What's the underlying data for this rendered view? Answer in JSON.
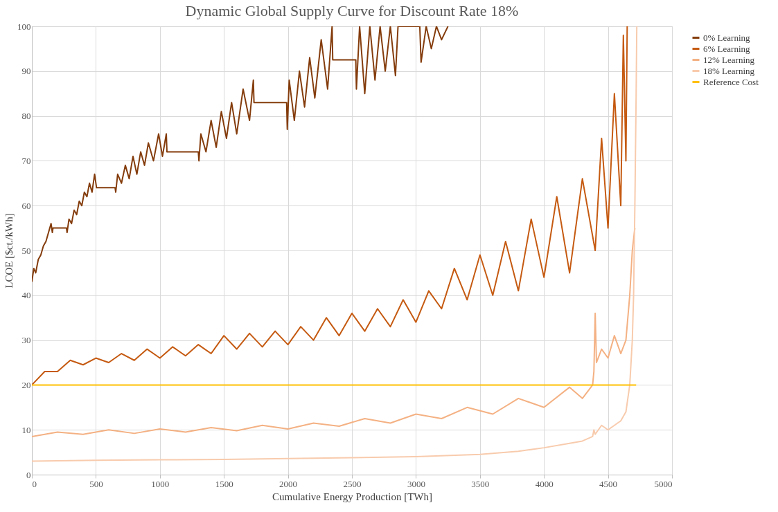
{
  "chart_data": {
    "type": "line",
    "title": "Dynamic Global Supply Curve for Discount Rate 18%",
    "xlabel": "Cumulative Energy Production [TWh]",
    "ylabel": "LCOE [$ct./kWh]",
    "xlim": [
      0,
      5000
    ],
    "xticks": [
      0,
      500,
      1000,
      1500,
      2000,
      2500,
      3000,
      3500,
      4000,
      4500,
      5000
    ],
    "ylim": [
      0,
      100
    ],
    "yticks": [
      0,
      10,
      20,
      30,
      40,
      50,
      60,
      70,
      80,
      90,
      100
    ],
    "grid": true,
    "legend": "right",
    "series": [
      {
        "name": "0% Learning",
        "color": "#843c0c",
        "x": [
          0,
          15,
          30,
          50,
          70,
          90,
          110,
          130,
          150,
          160,
          165,
          270,
          275,
          290,
          310,
          330,
          350,
          370,
          390,
          410,
          430,
          450,
          470,
          490,
          505,
          650,
          655,
          670,
          700,
          730,
          760,
          790,
          820,
          850,
          880,
          910,
          950,
          990,
          1020,
          1050,
          1055,
          1300,
          1305,
          1320,
          1360,
          1400,
          1440,
          1480,
          1520,
          1560,
          1600,
          1650,
          1700,
          1730,
          1735,
          1990,
          1995,
          2010,
          2050,
          2090,
          2130,
          2170,
          2210,
          2260,
          2310,
          2345,
          2350,
          2530,
          2535,
          2560,
          2600,
          2640,
          2680,
          2720,
          2760,
          2800,
          2840,
          2860,
          3030,
          3040,
          3080,
          3120,
          3160,
          3200,
          3250
        ],
        "values": [
          43,
          46,
          45,
          48,
          49,
          51,
          52,
          54,
          56,
          54,
          55,
          55,
          54,
          57,
          56,
          59,
          58,
          61,
          60,
          63,
          62,
          65,
          63,
          67,
          64,
          64,
          63,
          67,
          65,
          69,
          66,
          71,
          67,
          72,
          69,
          74,
          70,
          76,
          71,
          76,
          72,
          72,
          70,
          76,
          72,
          79,
          73,
          81,
          75,
          83,
          76,
          86,
          79,
          88,
          83,
          83,
          77,
          88,
          79,
          90,
          82,
          93,
          84,
          97,
          86,
          100,
          92.5,
          92.5,
          86,
          100,
          85,
          100,
          88,
          100,
          90,
          100,
          89,
          100,
          100,
          92,
          100,
          95,
          100,
          97,
          100
        ]
      },
      {
        "name": "6% Learning",
        "color": "#c55a11",
        "x": [
          0,
          100,
          200,
          300,
          400,
          500,
          600,
          700,
          800,
          900,
          1000,
          1100,
          1200,
          1300,
          1400,
          1500,
          1600,
          1700,
          1800,
          1900,
          2000,
          2100,
          2200,
          2300,
          2400,
          2500,
          2600,
          2700,
          2800,
          2900,
          3000,
          3100,
          3200,
          3300,
          3400,
          3500,
          3600,
          3700,
          3800,
          3900,
          4000,
          4100,
          4200,
          4300,
          4400,
          4450,
          4500,
          4550,
          4600,
          4620,
          4640,
          4650
        ],
        "values": [
          20,
          23,
          23,
          25.5,
          24.5,
          26,
          25,
          27,
          25.5,
          28,
          26,
          28.5,
          26.5,
          29,
          27,
          31,
          28,
          31.5,
          28.5,
          32,
          29,
          33,
          30,
          35,
          31,
          36,
          32,
          37,
          33,
          39,
          34,
          41,
          37,
          46,
          39,
          49,
          40,
          52,
          41,
          57,
          44,
          62,
          45,
          66,
          50,
          75,
          55,
          85,
          60,
          98,
          70,
          100
        ]
      },
      {
        "name": "12% Learning",
        "color": "#f4b183",
        "x": [
          0,
          200,
          400,
          600,
          800,
          1000,
          1200,
          1400,
          1600,
          1800,
          2000,
          2200,
          2400,
          2600,
          2800,
          3000,
          3200,
          3400,
          3600,
          3800,
          4000,
          4200,
          4300,
          4380,
          4390,
          4400,
          4410,
          4450,
          4500,
          4550,
          4600,
          4640,
          4670,
          4690,
          4710
        ],
        "values": [
          8.5,
          9.5,
          9,
          10,
          9.2,
          10.2,
          9.5,
          10.5,
          9.8,
          11,
          10.2,
          11.5,
          10.8,
          12.5,
          11.5,
          13.5,
          12.5,
          15,
          13.5,
          17,
          15,
          19.5,
          17,
          20,
          23,
          36,
          25,
          28,
          26,
          31,
          27,
          30,
          40,
          50,
          55
        ]
      },
      {
        "name": "18% Learning",
        "color": "#f8cbad",
        "x": [
          0,
          500,
          1000,
          1500,
          2000,
          2500,
          3000,
          3500,
          3800,
          4000,
          4200,
          4300,
          4380,
          4390,
          4400,
          4450,
          4500,
          4550,
          4600,
          4640,
          4670,
          4690,
          4700,
          4710,
          4720,
          4725
        ],
        "values": [
          3,
          3.2,
          3.3,
          3.4,
          3.6,
          3.8,
          4,
          4.5,
          5.2,
          6,
          7,
          7.5,
          8.5,
          10,
          9,
          11,
          10,
          11,
          12,
          14,
          20,
          30,
          40,
          60,
          85,
          100
        ]
      },
      {
        "name": "Reference Cost",
        "color": "#ffc000",
        "x": [
          0,
          4720
        ],
        "values": [
          20,
          20
        ]
      }
    ]
  }
}
